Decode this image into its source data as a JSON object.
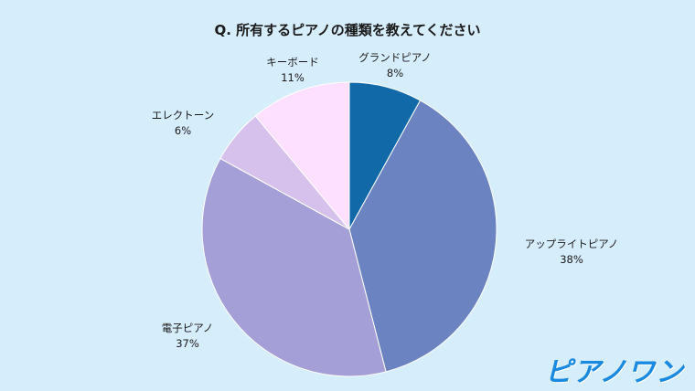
{
  "chart_data": {
    "type": "pie",
    "title": "Q. 所有するピアノの種類を教えてください",
    "start": "top",
    "direction": "clockwise",
    "slices": [
      {
        "label": "グランドピアノ",
        "value": 8,
        "value_label": "8%",
        "color": "#1169a8"
      },
      {
        "label": "アップライトピアノ",
        "value": 38,
        "value_label": "38%",
        "color": "#6b84c1"
      },
      {
        "label": "電子ピアノ",
        "value": 37,
        "value_label": "37%",
        "color": "#a59fd8"
      },
      {
        "label": "エレクトーン",
        "value": 6,
        "value_label": "6%",
        "color": "#d5c1ec"
      },
      {
        "label": "キーボード",
        "value": 11,
        "value_label": "11%",
        "color": "#fde0ff"
      }
    ]
  },
  "logo": {
    "text": "ピアノワン"
  }
}
